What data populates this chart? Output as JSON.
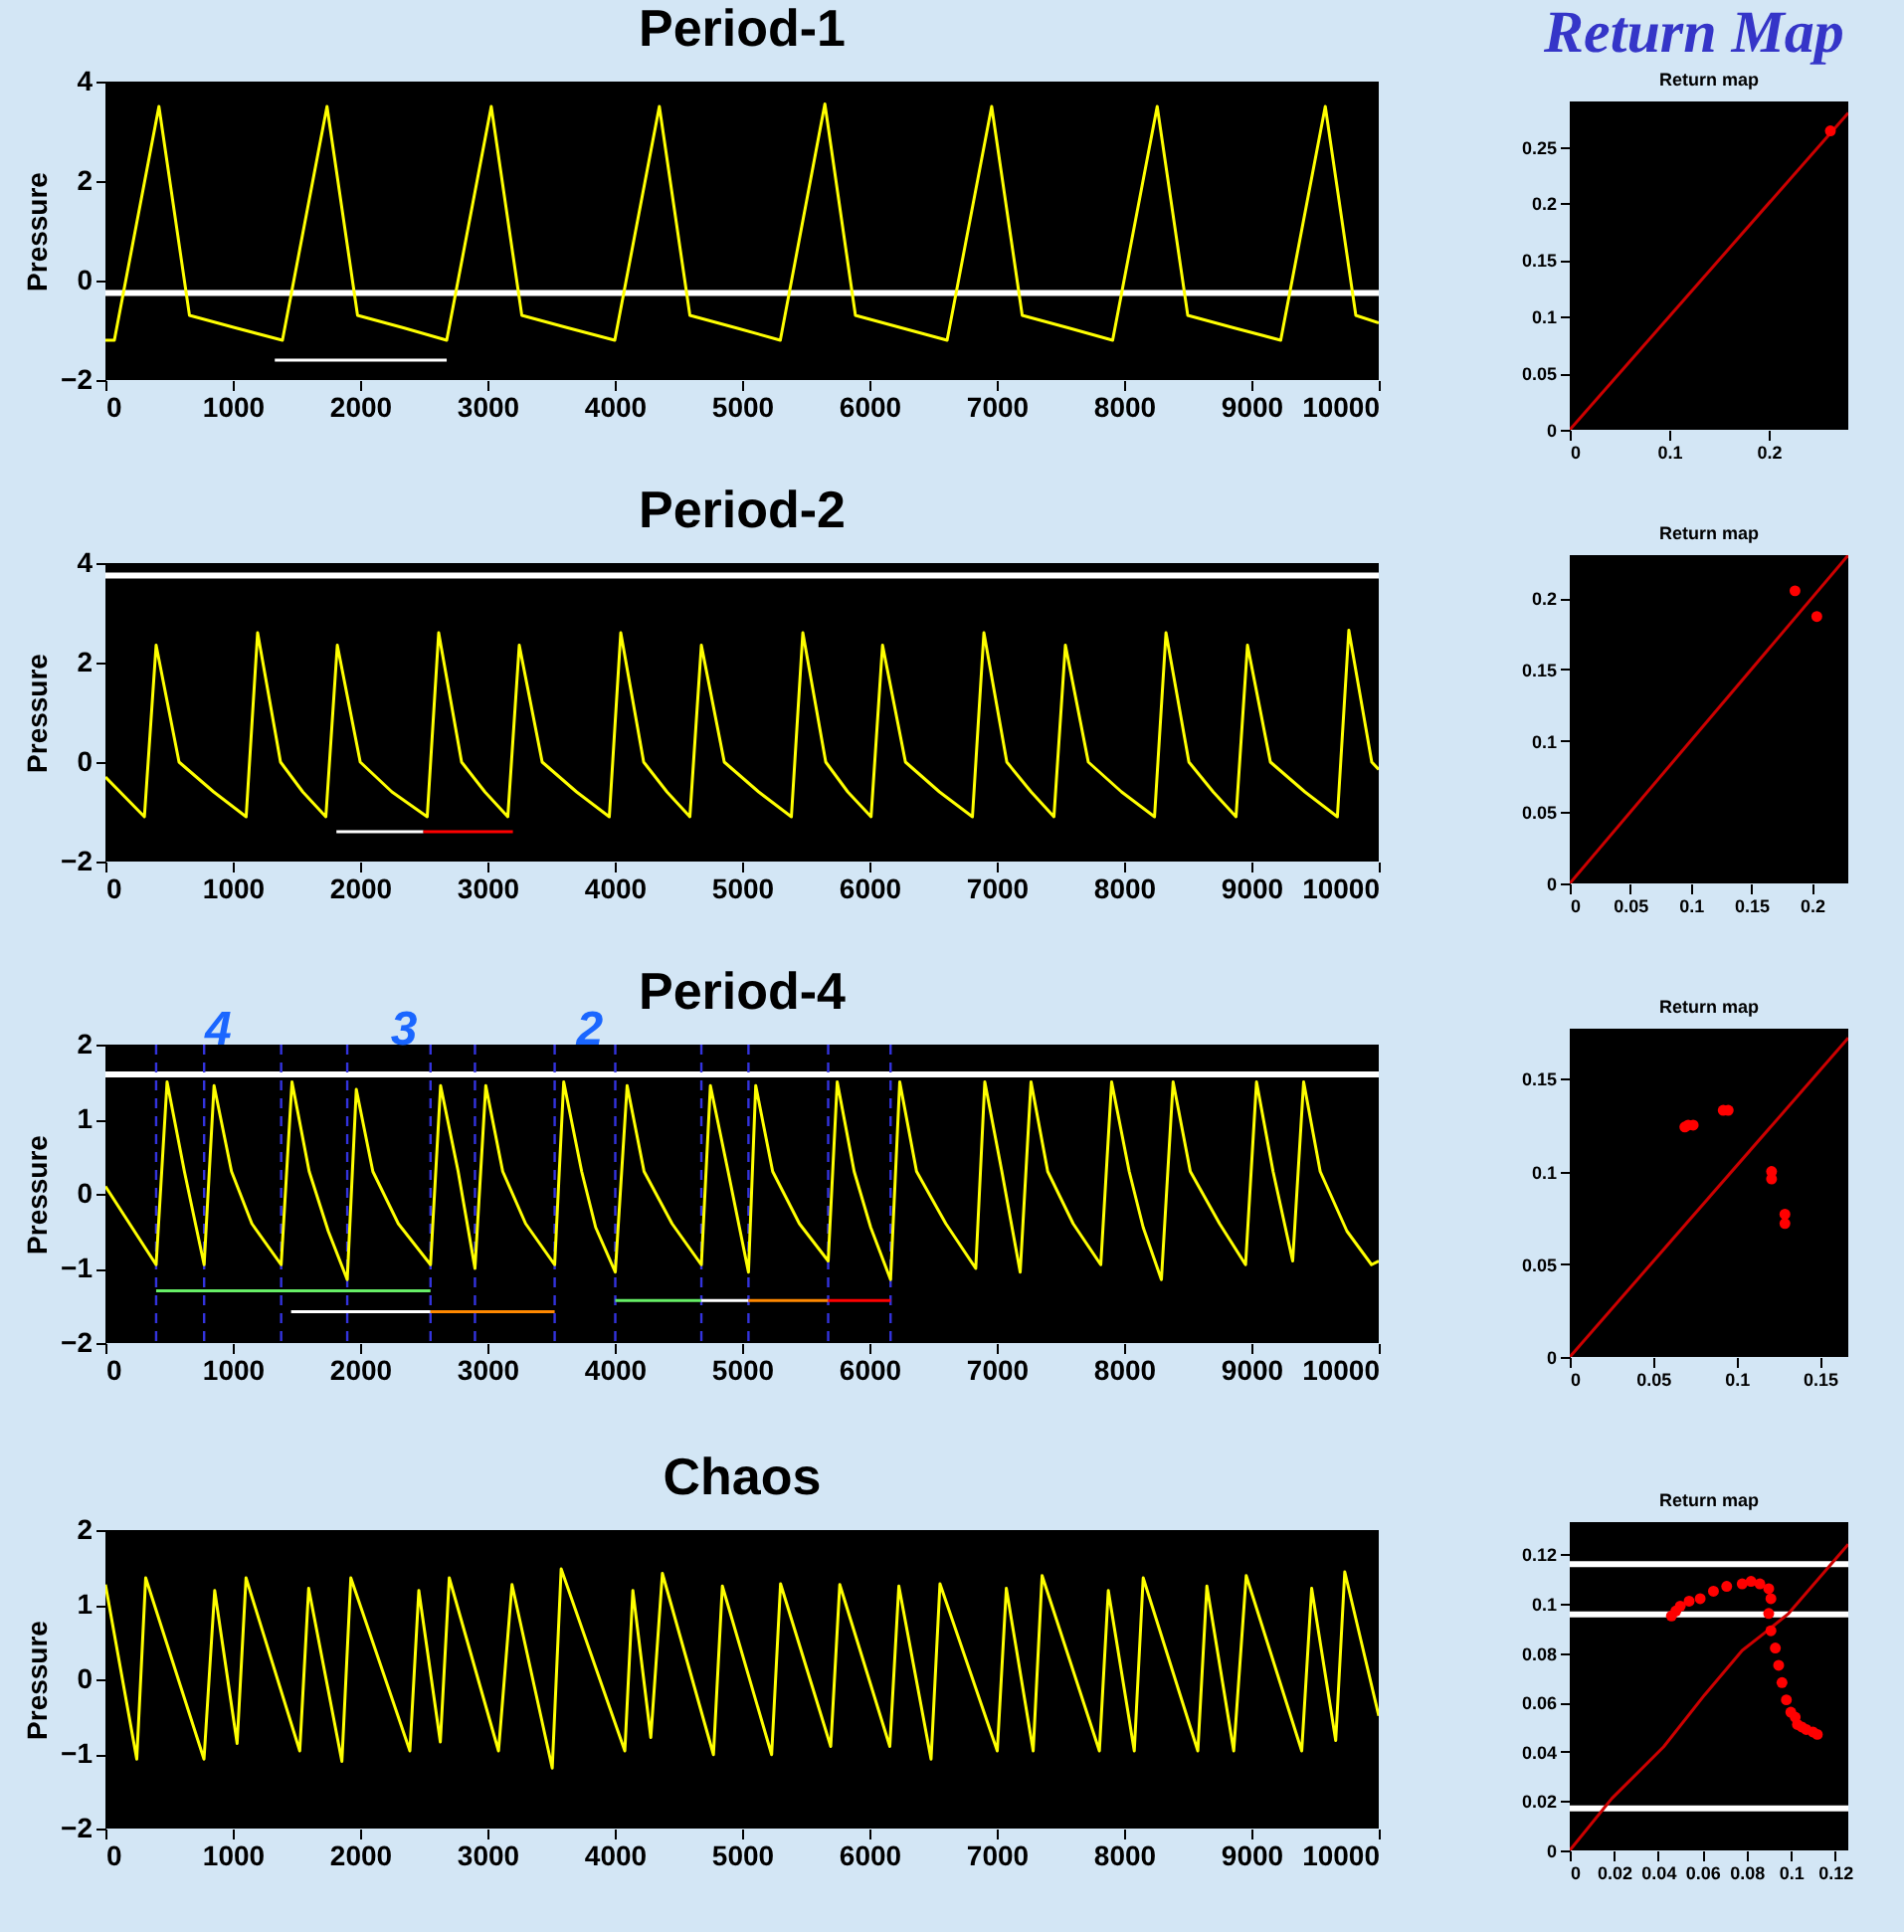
{
  "chart_data": [
    {
      "type": "line",
      "title": "Period-1",
      "ylabel": "Pressure",
      "xlim": [
        0,
        10000
      ],
      "ylim": [
        -2,
        4
      ],
      "xticks": [
        0,
        1000,
        2000,
        3000,
        4000,
        5000,
        6000,
        7000,
        8000,
        9000,
        10000
      ],
      "yticks": [
        -2,
        0,
        2,
        4
      ],
      "series": [
        {
          "color": "#ffff00",
          "x": [
            0,
            70,
            420,
            660,
            1020,
            1390,
            1740,
            1980,
            2340,
            2680,
            3030,
            3270,
            3630,
            4000,
            4350,
            4590,
            4950,
            5300,
            5650,
            5890,
            6250,
            6610,
            6960,
            7200,
            7560,
            7910,
            8260,
            8500,
            8860,
            9230,
            9580,
            9820,
            10000
          ],
          "values": [
            -1.2,
            -1.2,
            3.5,
            -0.7,
            -0.95,
            -1.2,
            3.5,
            -0.7,
            -0.95,
            -1.2,
            3.5,
            -0.7,
            -0.95,
            -1.2,
            3.5,
            -0.7,
            -0.95,
            -1.2,
            3.55,
            -0.7,
            -0.95,
            -1.2,
            3.5,
            -0.7,
            -0.95,
            -1.2,
            3.5,
            -0.7,
            -0.95,
            -1.2,
            3.5,
            -0.7,
            -0.85
          ]
        },
        {
          "color": "#ffffff",
          "x": [
            1330,
            2680
          ],
          "values": [
            -1.6,
            -1.6
          ]
        }
      ],
      "ref_lines": [
        {
          "axis": "y",
          "value": -0.25,
          "color": "#ffffff"
        }
      ]
    },
    {
      "type": "scatter",
      "title": "Return map",
      "annotations": [
        "Return Map"
      ],
      "xlim": [
        0,
        0.28
      ],
      "ylim": [
        0,
        0.29
      ],
      "xticks": [
        0,
        0.1,
        0.2
      ],
      "yticks": [
        0,
        0.05,
        0.1,
        0.15,
        0.2,
        0.25
      ],
      "series": [
        {
          "type": "line",
          "color": "#cc0000",
          "x": [
            0,
            0.28
          ],
          "values": [
            0,
            0.28
          ]
        },
        {
          "color": "#ff0000",
          "marker": "circle",
          "x": [
            0.262
          ],
          "values": [
            0.264
          ]
        }
      ]
    },
    {
      "type": "line",
      "title": "Period-2",
      "ylabel": "Pressure",
      "xlim": [
        0,
        10000
      ],
      "ylim": [
        -2,
        4
      ],
      "xticks": [
        0,
        1000,
        2000,
        3000,
        4000,
        5000,
        6000,
        7000,
        8000,
        9000,
        10000
      ],
      "yticks": [
        -2,
        0,
        2,
        4
      ],
      "series": [
        {
          "color": "#ffff00",
          "x": [
            0,
            306,
            398,
            578,
            850,
            1105,
            1195,
            1375,
            1550,
            1731,
            1821,
            2001,
            2250,
            2527,
            2617,
            2797,
            2980,
            3160,
            3250,
            3430,
            3700,
            3957,
            4047,
            4227,
            4410,
            4590,
            4680,
            4860,
            5130,
            5387,
            5477,
            5657,
            5830,
            6013,
            6103,
            6283,
            6550,
            6809,
            6899,
            7079,
            7270,
            7449,
            7539,
            7719,
            7980,
            8239,
            8329,
            8509,
            8700,
            8879,
            8969,
            9149,
            9420,
            9675,
            9765,
            9945,
            10000
          ],
          "values": [
            -0.3,
            -1.1,
            2.35,
            0,
            -0.6,
            -1.1,
            2.6,
            0,
            -0.6,
            -1.1,
            2.35,
            0,
            -0.6,
            -1.1,
            2.6,
            0,
            -0.6,
            -1.1,
            2.35,
            0,
            -0.6,
            -1.1,
            2.6,
            0,
            -0.6,
            -1.1,
            2.35,
            0,
            -0.6,
            -1.1,
            2.6,
            0,
            -0.6,
            -1.1,
            2.35,
            0,
            -0.6,
            -1.1,
            2.6,
            0,
            -0.6,
            -1.1,
            2.35,
            0,
            -0.6,
            -1.1,
            2.6,
            0,
            -0.6,
            -1.1,
            2.35,
            0,
            -0.6,
            -1.1,
            2.65,
            0,
            -0.15
          ]
        },
        {
          "color": "#ffffff",
          "x": [
            1814,
            2497
          ],
          "values": [
            -1.4,
            -1.4
          ]
        },
        {
          "color": "#ff0000",
          "x": [
            2497,
            3200
          ],
          "values": [
            -1.4,
            -1.4
          ]
        }
      ],
      "ref_lines": [
        {
          "axis": "y",
          "value": 3.75,
          "color": "#ffffff"
        }
      ]
    },
    {
      "type": "scatter",
      "title": "Return map",
      "xlim": [
        0,
        0.23
      ],
      "ylim": [
        0,
        0.23
      ],
      "xticks": [
        0,
        0.05,
        0.1,
        0.15,
        0.2
      ],
      "yticks": [
        0,
        0.05,
        0.1,
        0.15,
        0.2
      ],
      "series": [
        {
          "type": "line",
          "color": "#cc0000",
          "x": [
            0,
            0.23
          ],
          "values": [
            0,
            0.23
          ]
        },
        {
          "color": "#ff0000",
          "marker": "circle",
          "x": [
            0.186,
            0.204
          ],
          "values": [
            0.205,
            0.187
          ]
        }
      ]
    },
    {
      "type": "line",
      "title": "Period-4",
      "ylabel": "Pressure",
      "xlim": [
        0,
        10000
      ],
      "ylim": [
        -2,
        2
      ],
      "xticks": [
        0,
        1000,
        2000,
        3000,
        4000,
        5000,
        6000,
        7000,
        8000,
        9000,
        10000
      ],
      "yticks": [
        -2,
        -1,
        0,
        1,
        2
      ],
      "annotations": [
        "4",
        "3",
        "2"
      ],
      "series": [
        {
          "color": "#ffff00",
          "x": [
            0,
            398,
            484,
            620,
            775,
            853,
            990,
            1150,
            1380,
            1465,
            1600,
            1750,
            1899,
            1970,
            2100,
            2300,
            2553,
            2632,
            2770,
            2902,
            2987,
            3120,
            3300,
            3528,
            3599,
            3740,
            3850,
            4004,
            4097,
            4230,
            4450,
            4680,
            4751,
            4890,
            5050,
            5107,
            5240,
            5450,
            5676,
            5747,
            5880,
            6010,
            6166,
            6238,
            6370,
            6600,
            6835,
            6906,
            7040,
            7184,
            7269,
            7400,
            7600,
            7817,
            7902,
            8040,
            8150,
            8293,
            8385,
            8520,
            8750,
            8954,
            9040,
            9170,
            9324,
            9410,
            9540,
            9750,
            9943,
            10000
          ],
          "values": [
            0.1,
            -0.95,
            1.5,
            0.3,
            -0.95,
            1.45,
            0.3,
            -0.4,
            -0.95,
            1.5,
            0.3,
            -0.5,
            -1.15,
            1.4,
            0.3,
            -0.4,
            -0.95,
            1.45,
            0.3,
            -1.0,
            1.45,
            0.3,
            -0.4,
            -0.95,
            1.5,
            0.3,
            -0.45,
            -1.05,
            1.45,
            0.3,
            -0.4,
            -0.95,
            1.45,
            0.3,
            -1.05,
            1.45,
            0.3,
            -0.4,
            -0.9,
            1.5,
            0.3,
            -0.45,
            -1.15,
            1.5,
            0.3,
            -0.4,
            -1.0,
            1.5,
            0.3,
            -1.05,
            1.5,
            0.3,
            -0.4,
            -0.95,
            1.5,
            0.3,
            -0.45,
            -1.15,
            1.5,
            0.3,
            -0.4,
            -0.95,
            1.5,
            0.3,
            -0.9,
            1.5,
            0.3,
            -0.5,
            -0.95,
            -0.9
          ]
        },
        {
          "color": "#66ee66",
          "x": [
            398,
            2553
          ],
          "values": [
            -1.3,
            -1.3
          ]
        },
        {
          "color": "#ffffff",
          "x": [
            1458,
            2553
          ],
          "values": [
            -1.58,
            -1.58
          ]
        },
        {
          "color": "#ff8800",
          "x": [
            2553,
            3528
          ],
          "values": [
            -1.58,
            -1.58
          ]
        },
        {
          "color": "#66ee66",
          "x": [
            4004,
            4680
          ],
          "values": [
            -1.43,
            -1.43
          ]
        },
        {
          "color": "#ffffff",
          "x": [
            4680,
            5050
          ],
          "values": [
            -1.43,
            -1.43
          ]
        },
        {
          "color": "#ff8800",
          "x": [
            5050,
            5676
          ],
          "values": [
            -1.43,
            -1.43
          ]
        },
        {
          "color": "#ff0000",
          "x": [
            5676,
            6166
          ],
          "values": [
            -1.43,
            -1.43
          ]
        }
      ],
      "ref_lines": [
        {
          "axis": "y",
          "value": 1.6,
          "color": "#ffffff"
        },
        {
          "axis": "x",
          "value": 398,
          "color": "#3333dd",
          "line_style": "dashed"
        },
        {
          "axis": "x",
          "value": 775,
          "color": "#3333dd",
          "line_style": "dashed"
        },
        {
          "axis": "x",
          "value": 1380,
          "color": "#3333dd",
          "line_style": "dashed"
        },
        {
          "axis": "x",
          "value": 1899,
          "color": "#3333dd",
          "line_style": "dashed"
        },
        {
          "axis": "x",
          "value": 2553,
          "color": "#3333dd",
          "line_style": "dashed"
        },
        {
          "axis": "x",
          "value": 2902,
          "color": "#3333dd",
          "line_style": "dashed"
        },
        {
          "axis": "x",
          "value": 3528,
          "color": "#3333dd",
          "line_style": "dashed"
        },
        {
          "axis": "x",
          "value": 4004,
          "color": "#3333dd",
          "line_style": "dashed"
        },
        {
          "axis": "x",
          "value": 4680,
          "color": "#3333dd",
          "line_style": "dashed"
        },
        {
          "axis": "x",
          "value": 5050,
          "color": "#3333dd",
          "line_style": "dashed"
        },
        {
          "axis": "x",
          "value": 5676,
          "color": "#3333dd",
          "line_style": "dashed"
        },
        {
          "axis": "x",
          "value": 6166,
          "color": "#3333dd",
          "line_style": "dashed"
        }
      ]
    },
    {
      "type": "scatter",
      "title": "Return map",
      "xlim": [
        0,
        0.167
      ],
      "ylim": [
        0,
        0.177
      ],
      "xticks": [
        0,
        0.05,
        0.1,
        0.15
      ],
      "yticks": [
        0,
        0.05,
        0.1,
        0.15
      ],
      "series": [
        {
          "type": "line",
          "color": "#cc0000",
          "x": [
            0,
            0.167
          ],
          "values": [
            0,
            0.172
          ]
        },
        {
          "color": "#ff0000",
          "marker": "circle",
          "x": [
            0.069,
            0.071,
            0.074,
            0.092,
            0.095,
            0.121,
            0.121,
            0.129,
            0.129
          ],
          "values": [
            0.124,
            0.125,
            0.125,
            0.133,
            0.133,
            0.1,
            0.096,
            0.077,
            0.072
          ]
        }
      ]
    },
    {
      "type": "line",
      "title": "Chaos",
      "ylabel": "Pressure",
      "xlim": [
        0,
        10000
      ],
      "ylim": [
        -2,
        2
      ],
      "xticks": [
        0,
        1000,
        2000,
        3000,
        4000,
        5000,
        6000,
        7000,
        8000,
        9000,
        10000
      ],
      "yticks": [
        -2,
        -1,
        0,
        1,
        2
      ],
      "series": [
        {
          "color": "#ffff00",
          "x": [
            0,
            246,
            316,
            774,
            858,
            1034,
            1104,
            1526,
            1596,
            1857,
            1927,
            2391,
            2461,
            2630,
            2700,
            3087,
            3193,
            3509,
            3579,
            4079,
            4142,
            4283,
            4374,
            4775,
            4845,
            5232,
            5302,
            5696,
            5767,
            6160,
            6231,
            6484,
            6554,
            7004,
            7075,
            7286,
            7356,
            7806,
            7876,
            8080,
            8150,
            8579,
            8650,
            8861,
            8959,
            9395,
            9473,
            9662,
            9733,
            10000
          ],
          "values": [
            1.27,
            -1.07,
            1.36,
            -1.07,
            1.19,
            -0.86,
            1.36,
            -0.96,
            1.22,
            -1.1,
            1.36,
            -0.96,
            1.19,
            -0.84,
            1.36,
            -0.96,
            1.27,
            -1.19,
            1.48,
            -0.96,
            1.19,
            -0.78,
            1.42,
            -1.01,
            1.25,
            -1.01,
            1.28,
            -0.9,
            1.27,
            -0.9,
            1.25,
            -1.07,
            1.28,
            -0.96,
            1.22,
            -0.96,
            1.39,
            -0.96,
            1.19,
            -0.96,
            1.36,
            -0.96,
            1.25,
            -0.96,
            1.39,
            -0.96,
            1.22,
            -0.82,
            1.44,
            -0.49
          ]
        }
      ]
    },
    {
      "type": "scatter",
      "title": "Return map",
      "xlim": [
        0,
        0.126
      ],
      "ylim": [
        0,
        0.133
      ],
      "xticks": [
        0,
        0.02,
        0.04,
        0.06,
        0.08,
        0.1,
        0.12
      ],
      "yticks": [
        0,
        0.02,
        0.04,
        0.06,
        0.08,
        0.1,
        0.12
      ],
      "series": [
        {
          "type": "line",
          "color": "#cc0000",
          "x": [
            0,
            0.019,
            0.0425,
            0.061,
            0.078,
            0.088,
            0.099,
            0.126
          ],
          "values": [
            0,
            0.021,
            0.042,
            0.063,
            0.081,
            0.088,
            0.096,
            0.124
          ]
        },
        {
          "color": "#ff0000",
          "marker": "circle",
          "x": [
            0.046,
            0.048,
            0.05,
            0.054,
            0.059,
            0.065,
            0.071,
            0.078,
            0.082,
            0.086,
            0.09,
            0.091,
            0.09,
            0.091,
            0.093,
            0.0945,
            0.096,
            0.098,
            0.1,
            0.102,
            0.103,
            0.105,
            0.107,
            0.11,
            0.112
          ],
          "values": [
            0.095,
            0.097,
            0.099,
            0.101,
            0.102,
            0.105,
            0.107,
            0.108,
            0.109,
            0.108,
            0.106,
            0.102,
            0.096,
            0.089,
            0.082,
            0.075,
            0.068,
            0.061,
            0.056,
            0.054,
            0.051,
            0.05,
            0.049,
            0.048,
            0.047
          ]
        }
      ],
      "ref_lines": [
        {
          "axis": "y",
          "value": 0.116,
          "color": "#ffffff"
        },
        {
          "axis": "y",
          "value": 0.0956,
          "color": "#ffffff"
        },
        {
          "axis": "y",
          "value": 0.017,
          "color": "#ffffff"
        }
      ]
    }
  ]
}
